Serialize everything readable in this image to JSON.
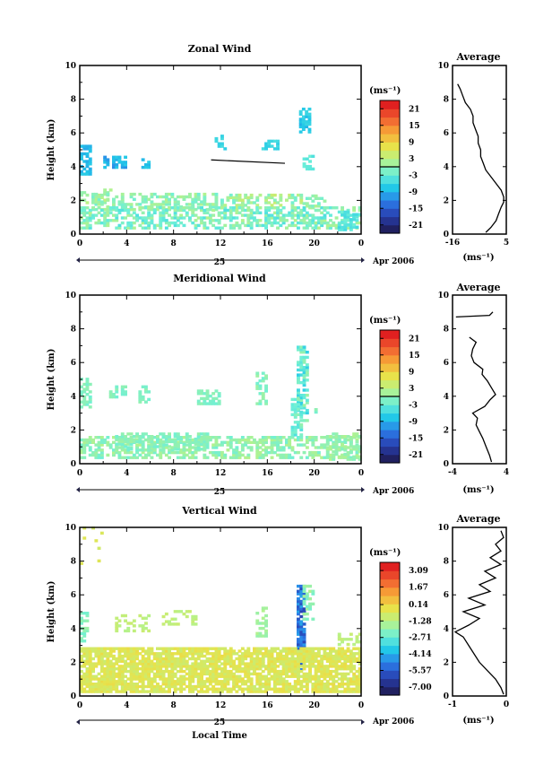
{
  "chart_data": [
    {
      "type": "heatmap",
      "title": "Zonal Wind",
      "ylabel": "Height (km)",
      "ylim": [
        0,
        10
      ],
      "yticks": [
        "0",
        "2",
        "4",
        "6",
        "8",
        "10"
      ],
      "xticks": [
        "0",
        "4",
        "8",
        "12",
        "16",
        "20",
        "0"
      ],
      "xlim": [
        0,
        24
      ],
      "date_center": "25",
      "date_right": "Apr 2006",
      "colorbar": {
        "unit": "(ms⁻¹)",
        "labels": [
          "21",
          "15",
          "9",
          "3",
          "-3",
          "-9",
          "-15",
          "-21"
        ],
        "range": [
          -24,
          24
        ]
      },
      "avg_title": "Average",
      "avg_xlabel": "(ms⁻¹)",
      "avg_xticks": [
        "-16",
        "5"
      ],
      "avg_xlim": [
        -16,
        5
      ],
      "avg_yticks": [
        "0",
        "2",
        "4",
        "6",
        "8",
        "10"
      ],
      "avg_profile": [
        [
          -3,
          0.1
        ],
        [
          -1,
          0.4
        ],
        [
          1,
          0.8
        ],
        [
          2,
          1.2
        ],
        [
          3,
          1.6
        ],
        [
          4,
          1.9
        ],
        [
          4,
          2.2
        ],
        [
          3,
          2.6
        ],
        [
          1,
          3.0
        ],
        [
          -1,
          3.4
        ],
        [
          -3,
          3.8
        ],
        [
          -4,
          4.2
        ],
        [
          -5,
          4.6
        ],
        [
          -5,
          5.0
        ],
        [
          -6,
          5.4
        ],
        [
          -6,
          5.8
        ],
        [
          -7,
          6.2
        ],
        [
          -8,
          6.6
        ],
        [
          -8,
          7.0
        ],
        [
          -9,
          7.4
        ],
        [
          -11,
          7.8
        ],
        [
          -12,
          8.2
        ],
        [
          -13,
          8.6
        ],
        [
          -14,
          8.9
        ]
      ]
    },
    {
      "type": "heatmap",
      "title": "Meridional Wind",
      "ylabel": "Height (km)",
      "ylim": [
        0,
        10
      ],
      "yticks": [
        "0",
        "2",
        "4",
        "6",
        "8",
        "10"
      ],
      "xticks": [
        "0",
        "4",
        "8",
        "12",
        "16",
        "20",
        "0"
      ],
      "xlim": [
        0,
        24
      ],
      "date_center": "25",
      "date_right": "Apr 2006",
      "colorbar": {
        "unit": "(ms⁻¹)",
        "labels": [
          "21",
          "15",
          "9",
          "3",
          "-3",
          "-9",
          "-15",
          "-21"
        ],
        "range": [
          -24,
          24
        ]
      },
      "avg_title": "Average",
      "avg_xlabel": "(ms⁻¹)",
      "avg_xticks": [
        "-4",
        "4"
      ],
      "avg_xlim": [
        -4,
        4
      ],
      "avg_yticks": [
        "0",
        "2",
        "4",
        "6",
        "8",
        "10"
      ],
      "avg_profile": [
        [
          1.8,
          0.1
        ],
        [
          1.5,
          0.5
        ],
        [
          1.0,
          1.0
        ],
        [
          0.5,
          1.5
        ],
        [
          0.0,
          1.9
        ],
        [
          -0.5,
          2.3
        ],
        [
          -0.3,
          2.7
        ],
        [
          -1.0,
          3.0
        ],
        [
          0.8,
          3.4
        ],
        [
          1.6,
          3.8
        ],
        [
          2.4,
          4.1
        ],
        [
          1.8,
          4.5
        ],
        [
          1.2,
          4.9
        ],
        [
          0.4,
          5.3
        ],
        [
          0.5,
          5.6
        ],
        [
          -0.8,
          6.0
        ],
        [
          -1.2,
          6.4
        ],
        [
          -1.0,
          6.8
        ],
        [
          -0.5,
          7.2
        ],
        [
          -1.5,
          7.5
        ],
        [
          null,
          null
        ],
        [
          -3.5,
          8.7
        ],
        [
          1.5,
          8.8
        ],
        [
          2.0,
          9.0
        ]
      ]
    },
    {
      "type": "heatmap",
      "title": "Vertical Wind",
      "ylabel": "Height (km)",
      "xlabel": "Local Time",
      "ylim": [
        0,
        10
      ],
      "yticks": [
        "0",
        "2",
        "4",
        "6",
        "8",
        "10"
      ],
      "xticks": [
        "0",
        "4",
        "8",
        "12",
        "16",
        "20",
        "0"
      ],
      "xlim": [
        0,
        24
      ],
      "date_center": "25",
      "date_right": "Apr 2006",
      "colorbar": {
        "unit": "(ms⁻¹)",
        "labels": [
          "3.09",
          "1.67",
          "0.14",
          "-1.28",
          "-2.71",
          "-4.14",
          "-5.57",
          "-7.00"
        ],
        "range": [
          -7.71,
          3.8
        ]
      },
      "avg_title": "Average",
      "avg_xlabel": "(ms⁻¹)",
      "avg_xticks": [
        "-1",
        "0"
      ],
      "avg_xlim": [
        -1,
        0
      ],
      "avg_yticks": [
        "0",
        "2",
        "4",
        "6",
        "8",
        "10"
      ],
      "avg_profile": [
        [
          -0.05,
          0.1
        ],
        [
          -0.1,
          0.5
        ],
        [
          -0.2,
          1.0
        ],
        [
          -0.35,
          1.5
        ],
        [
          -0.5,
          2.0
        ],
        [
          -0.6,
          2.5
        ],
        [
          -0.7,
          3.0
        ],
        [
          -0.8,
          3.5
        ],
        [
          -0.95,
          3.8
        ],
        [
          -0.7,
          4.2
        ],
        [
          -0.5,
          4.6
        ],
        [
          -0.8,
          5.0
        ],
        [
          -0.4,
          5.4
        ],
        [
          -0.7,
          5.8
        ],
        [
          -0.3,
          6.2
        ],
        [
          -0.5,
          6.6
        ],
        [
          -0.2,
          7.0
        ],
        [
          -0.4,
          7.4
        ],
        [
          -0.1,
          7.8
        ],
        [
          -0.3,
          8.2
        ],
        [
          -0.1,
          8.6
        ],
        [
          -0.2,
          9.0
        ],
        [
          -0.05,
          9.4
        ],
        [
          -0.1,
          9.8
        ]
      ]
    }
  ]
}
